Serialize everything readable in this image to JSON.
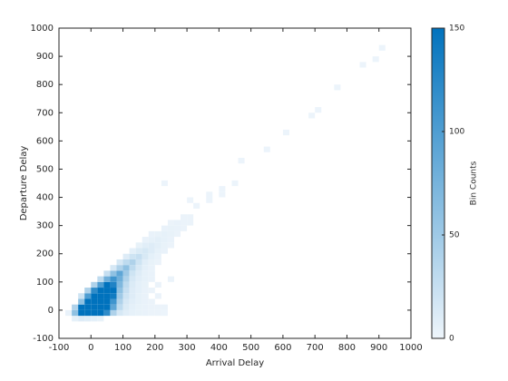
{
  "chart_data": {
    "type": "histogram2d",
    "xlabel": "Arrival Delay",
    "ylabel": "Departure Delay",
    "colorbar_label": "Bin Counts",
    "xlim": [
      -100,
      1000
    ],
    "ylim": [
      -100,
      1000
    ],
    "xticks": [
      -100,
      0,
      100,
      200,
      300,
      400,
      500,
      600,
      700,
      800,
      900,
      1000
    ],
    "yticks": [
      -100,
      0,
      100,
      200,
      300,
      400,
      500,
      600,
      700,
      800,
      900,
      1000
    ],
    "clim": [
      0,
      150
    ],
    "cticks": [
      0,
      50,
      100,
      150
    ],
    "colormap": [
      "#eef5fb",
      "#0072bd"
    ],
    "bin_width": [
      20,
      20
    ],
    "cells": [
      [
        -60,
        -40,
        5
      ],
      [
        -40,
        -40,
        10
      ],
      [
        -20,
        -40,
        8
      ],
      [
        0,
        -40,
        6
      ],
      [
        20,
        -40,
        4
      ],
      [
        -80,
        -20,
        3
      ],
      [
        -60,
        -20,
        60
      ],
      [
        -40,
        -20,
        150
      ],
      [
        -20,
        -20,
        150
      ],
      [
        0,
        -20,
        150
      ],
      [
        20,
        -20,
        150
      ],
      [
        40,
        -20,
        120
      ],
      [
        60,
        -20,
        40
      ],
      [
        80,
        -20,
        15
      ],
      [
        100,
        -20,
        8
      ],
      [
        120,
        -20,
        5
      ],
      [
        140,
        -20,
        4
      ],
      [
        160,
        -20,
        3
      ],
      [
        180,
        -20,
        2
      ],
      [
        200,
        -20,
        2
      ],
      [
        220,
        -20,
        1
      ],
      [
        -60,
        0,
        40
      ],
      [
        -40,
        0,
        150
      ],
      [
        -20,
        0,
        150
      ],
      [
        0,
        0,
        150
      ],
      [
        20,
        0,
        150
      ],
      [
        40,
        0,
        150
      ],
      [
        60,
        0,
        90
      ],
      [
        80,
        0,
        30
      ],
      [
        100,
        0,
        12
      ],
      [
        120,
        0,
        6
      ],
      [
        140,
        0,
        4
      ],
      [
        160,
        0,
        3
      ],
      [
        180,
        0,
        2
      ],
      [
        200,
        0,
        2
      ],
      [
        220,
        0,
        2
      ],
      [
        -40,
        20,
        60
      ],
      [
        -20,
        20,
        150
      ],
      [
        0,
        20,
        150
      ],
      [
        20,
        20,
        150
      ],
      [
        40,
        20,
        150
      ],
      [
        60,
        20,
        110
      ],
      [
        80,
        20,
        40
      ],
      [
        100,
        20,
        15
      ],
      [
        120,
        20,
        8
      ],
      [
        140,
        20,
        5
      ],
      [
        160,
        20,
        3
      ],
      [
        180,
        20,
        2
      ],
      [
        -40,
        40,
        20
      ],
      [
        -20,
        40,
        100
      ],
      [
        0,
        40,
        150
      ],
      [
        20,
        40,
        150
      ],
      [
        40,
        40,
        150
      ],
      [
        60,
        40,
        140
      ],
      [
        80,
        40,
        50
      ],
      [
        100,
        40,
        20
      ],
      [
        120,
        40,
        10
      ],
      [
        140,
        40,
        5
      ],
      [
        160,
        40,
        3
      ],
      [
        200,
        40,
        2
      ],
      [
        -20,
        60,
        40
      ],
      [
        0,
        60,
        120
      ],
      [
        20,
        60,
        150
      ],
      [
        40,
        60,
        150
      ],
      [
        60,
        60,
        150
      ],
      [
        80,
        60,
        60
      ],
      [
        100,
        60,
        25
      ],
      [
        120,
        60,
        10
      ],
      [
        140,
        60,
        6
      ],
      [
        160,
        60,
        3
      ],
      [
        180,
        60,
        2
      ],
      [
        0,
        80,
        40
      ],
      [
        20,
        80,
        100
      ],
      [
        40,
        80,
        150
      ],
      [
        60,
        80,
        130
      ],
      [
        80,
        80,
        70
      ],
      [
        100,
        80,
        30
      ],
      [
        120,
        80,
        12
      ],
      [
        140,
        80,
        6
      ],
      [
        160,
        80,
        4
      ],
      [
        200,
        80,
        2
      ],
      [
        20,
        100,
        30
      ],
      [
        40,
        100,
        80
      ],
      [
        60,
        100,
        110
      ],
      [
        80,
        100,
        80
      ],
      [
        100,
        100,
        40
      ],
      [
        120,
        100,
        15
      ],
      [
        140,
        100,
        8
      ],
      [
        160,
        100,
        5
      ],
      [
        180,
        100,
        3
      ],
      [
        240,
        100,
        2
      ],
      [
        40,
        120,
        25
      ],
      [
        60,
        120,
        60
      ],
      [
        80,
        120,
        90
      ],
      [
        100,
        120,
        50
      ],
      [
        120,
        120,
        20
      ],
      [
        140,
        120,
        10
      ],
      [
        160,
        120,
        5
      ],
      [
        180,
        120,
        3
      ],
      [
        60,
        140,
        15
      ],
      [
        80,
        140,
        40
      ],
      [
        100,
        140,
        60
      ],
      [
        120,
        140,
        30
      ],
      [
        140,
        140,
        14
      ],
      [
        160,
        140,
        6
      ],
      [
        180,
        140,
        3
      ],
      [
        80,
        160,
        15
      ],
      [
        100,
        160,
        30
      ],
      [
        120,
        160,
        40
      ],
      [
        140,
        160,
        20
      ],
      [
        160,
        160,
        8
      ],
      [
        180,
        160,
        4
      ],
      [
        200,
        160,
        2
      ],
      [
        100,
        180,
        10
      ],
      [
        120,
        180,
        20
      ],
      [
        140,
        180,
        25
      ],
      [
        160,
        180,
        14
      ],
      [
        180,
        180,
        6
      ],
      [
        200,
        180,
        3
      ],
      [
        120,
        200,
        6
      ],
      [
        140,
        200,
        12
      ],
      [
        160,
        200,
        15
      ],
      [
        180,
        200,
        10
      ],
      [
        200,
        200,
        5
      ],
      [
        220,
        200,
        3
      ],
      [
        140,
        220,
        4
      ],
      [
        160,
        220,
        8
      ],
      [
        180,
        220,
        10
      ],
      [
        200,
        220,
        7
      ],
      [
        220,
        220,
        4
      ],
      [
        240,
        220,
        2
      ],
      [
        160,
        240,
        3
      ],
      [
        180,
        240,
        5
      ],
      [
        200,
        240,
        7
      ],
      [
        220,
        240,
        5
      ],
      [
        240,
        240,
        3
      ],
      [
        180,
        260,
        3
      ],
      [
        200,
        260,
        4
      ],
      [
        220,
        260,
        5
      ],
      [
        240,
        260,
        4
      ],
      [
        260,
        260,
        2
      ],
      [
        220,
        280,
        3
      ],
      [
        240,
        280,
        4
      ],
      [
        260,
        280,
        3
      ],
      [
        280,
        280,
        2
      ],
      [
        240,
        300,
        2
      ],
      [
        260,
        300,
        3
      ],
      [
        280,
        300,
        2
      ],
      [
        300,
        300,
        2
      ],
      [
        280,
        320,
        2
      ],
      [
        300,
        320,
        2
      ],
      [
        320,
        360,
        1
      ],
      [
        300,
        380,
        1
      ],
      [
        360,
        380,
        1
      ],
      [
        360,
        400,
        1
      ],
      [
        400,
        400,
        1
      ],
      [
        400,
        420,
        1
      ],
      [
        220,
        440,
        1
      ],
      [
        440,
        440,
        1
      ],
      [
        460,
        520,
        1
      ],
      [
        540,
        560,
        1
      ],
      [
        600,
        620,
        1
      ],
      [
        680,
        680,
        1
      ],
      [
        700,
        700,
        1
      ],
      [
        760,
        780,
        1
      ],
      [
        840,
        860,
        1
      ],
      [
        880,
        880,
        1
      ],
      [
        900,
        920,
        1
      ]
    ]
  }
}
